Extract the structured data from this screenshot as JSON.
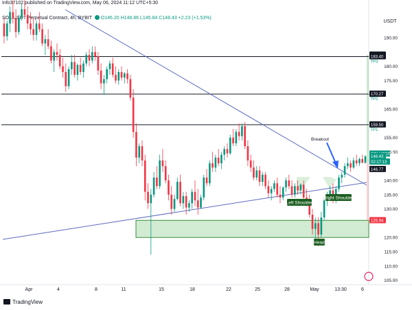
{
  "header": {
    "publisher": "Info37102 published on TradingView.com, May 06, 2024 11:12 UTC+5:30",
    "legend_symbol": "SOL/USDT Perpetual Contract, 4h, BYBIT",
    "legend_values": "O146.20 H148.86 L145.84 C148.43 +2.23 (+1.53%)"
  },
  "footer": {
    "brand": "TradingView"
  },
  "colors": {
    "up": "#089981",
    "down": "#f23645",
    "line": "#131722",
    "trend": "#5b6abf",
    "zone": "#4caf50"
  },
  "chart_data": {
    "type": "candlestick",
    "currency": "USDT",
    "price_scale": {
      "ticks": [
        190.0,
        180.0,
        175.0,
        165.0,
        155.0,
        150.0,
        140.0,
        135.0,
        130.0,
        120.0,
        115.0,
        110.0,
        105.0
      ]
    },
    "x_ticks": [
      "Apr",
      "4",
      "8",
      "11",
      "15",
      "18",
      "22",
      "25",
      "28",
      "May",
      "13:30",
      "6"
    ],
    "levels": [
      {
        "name": "TP3",
        "price": 183.4
      },
      {
        "name": "TP2",
        "price": 170.27
      },
      {
        "name": "TP1",
        "price": 159.5
      }
    ],
    "price_tags": [
      {
        "text": "183.97",
        "price": 183.97,
        "kind": "dark"
      },
      {
        "text": "183.40",
        "price": 183.4,
        "kind": "dark"
      },
      {
        "text": "170.27",
        "price": 170.27,
        "kind": "dark"
      },
      {
        "text": "159.50",
        "price": 159.5,
        "kind": "dark"
      },
      {
        "text": "SOLUSDT.P",
        "price": 149.3,
        "kind": "green"
      },
      {
        "text": "148.43",
        "price": 148.43,
        "kind": "green"
      },
      {
        "text": "02:17:13",
        "price": 146.5,
        "kind": "green"
      },
      {
        "text": "146.77",
        "price": 143.9,
        "kind": "dark"
      },
      {
        "text": "125.94",
        "price": 125.94,
        "kind": "red"
      }
    ],
    "support_zone": [
      120.0,
      126.0
    ],
    "target_box": [
      146.5,
      184.0
    ],
    "stop_box": [
      125.94,
      146.5
    ],
    "annotations": [
      "Breakout",
      "Left Shoulder",
      "Right Shoulder",
      "Head"
    ],
    "candles": [
      [
        195.0,
        197.0,
        188.0,
        190.5
      ],
      [
        190.5,
        196.0,
        189.0,
        195.0
      ],
      [
        195.0,
        201.0,
        192.0,
        199.0
      ],
      [
        199.0,
        203.0,
        195.0,
        197.0
      ],
      [
        197.0,
        200.0,
        190.0,
        192.0
      ],
      [
        192.0,
        198.0,
        191.0,
        197.0
      ],
      [
        197.0,
        202.0,
        196.0,
        200.0
      ],
      [
        200.0,
        204.0,
        197.0,
        198.0
      ],
      [
        198.0,
        201.0,
        193.0,
        195.0
      ],
      [
        195.0,
        199.0,
        191.0,
        193.0
      ],
      [
        193.0,
        197.0,
        189.0,
        191.0
      ],
      [
        191.0,
        196.0,
        189.0,
        195.0
      ],
      [
        195.0,
        199.0,
        192.0,
        193.0
      ],
      [
        193.0,
        195.0,
        187.0,
        188.0
      ],
      [
        188.0,
        191.0,
        184.0,
        189.5
      ],
      [
        189.5,
        193.0,
        186.0,
        187.0
      ],
      [
        187.0,
        189.0,
        181.0,
        182.0
      ],
      [
        182.0,
        186.0,
        178.0,
        185.0
      ],
      [
        185.0,
        188.0,
        182.0,
        184.0
      ],
      [
        184.0,
        186.0,
        179.0,
        180.0
      ],
      [
        180.0,
        183.0,
        176.0,
        178.0
      ],
      [
        178.0,
        181.0,
        171.0,
        173.0
      ],
      [
        173.0,
        180.0,
        172.0,
        179.0
      ],
      [
        179.0,
        184.0,
        177.0,
        181.5
      ],
      [
        181.5,
        184.0,
        176.0,
        177.0
      ],
      [
        177.0,
        181.0,
        175.0,
        180.5
      ],
      [
        180.5,
        183.0,
        177.0,
        178.0
      ],
      [
        178.0,
        182.0,
        176.0,
        181.0
      ],
      [
        181.0,
        185.0,
        180.0,
        184.0
      ],
      [
        184.0,
        186.0,
        180.0,
        182.0
      ],
      [
        182.0,
        187.0,
        181.0,
        185.0
      ],
      [
        185.0,
        187.0,
        182.0,
        183.5
      ],
      [
        183.5,
        185.0,
        177.0,
        178.5
      ],
      [
        178.5,
        181.0,
        172.0,
        174.0
      ],
      [
        174.0,
        177.0,
        170.0,
        175.5
      ],
      [
        175.5,
        180.0,
        174.0,
        179.0
      ],
      [
        179.0,
        182.0,
        177.0,
        181.0
      ],
      [
        181.0,
        183.0,
        176.0,
        177.0
      ],
      [
        177.0,
        180.0,
        174.0,
        175.0
      ],
      [
        175.0,
        179.0,
        173.5,
        178.0
      ],
      [
        178.0,
        180.0,
        175.0,
        176.0
      ],
      [
        176.0,
        178.0,
        174.0,
        177.5
      ],
      [
        177.5,
        179.0,
        174.0,
        175.5
      ],
      [
        175.5,
        177.0,
        168.0,
        169.0
      ],
      [
        169.0,
        172.0,
        155.0,
        157.0
      ],
      [
        157.0,
        160.0,
        145.0,
        148.0
      ],
      [
        148.0,
        153.0,
        146.0,
        152.0
      ],
      [
        152.0,
        154.0,
        145.0,
        147.0
      ],
      [
        147.0,
        149.0,
        133.0,
        136.0
      ],
      [
        136.0,
        139.0,
        130.0,
        132.0
      ],
      [
        132.0,
        137.0,
        114.0,
        135.0
      ],
      [
        135.0,
        143.0,
        134.0,
        141.0
      ],
      [
        141.0,
        145.0,
        137.0,
        138.0
      ],
      [
        138.0,
        149.0,
        137.0,
        147.0
      ],
      [
        147.0,
        151.0,
        143.0,
        145.0
      ],
      [
        145.0,
        147.0,
        139.0,
        140.0
      ],
      [
        140.0,
        142.0,
        133.0,
        135.0
      ],
      [
        135.0,
        138.0,
        128.0,
        130.0
      ],
      [
        130.0,
        135.0,
        129.0,
        133.5
      ],
      [
        133.5,
        141.0,
        133.0,
        139.5
      ],
      [
        139.5,
        142.0,
        131.0,
        132.0
      ],
      [
        132.0,
        136.0,
        130.0,
        134.5
      ],
      [
        134.5,
        136.0,
        128.0,
        130.5
      ],
      [
        130.5,
        133.0,
        129.0,
        132.0
      ],
      [
        132.0,
        137.0,
        130.0,
        136.0
      ],
      [
        136.0,
        140.0,
        131.0,
        133.0
      ],
      [
        133.0,
        137.0,
        128.0,
        130.5
      ],
      [
        130.5,
        135.0,
        130.0,
        134.0
      ],
      [
        134.0,
        142.0,
        133.0,
        141.0
      ],
      [
        141.0,
        144.0,
        138.0,
        139.0
      ],
      [
        139.0,
        147.0,
        138.0,
        146.0
      ],
      [
        146.0,
        150.0,
        143.0,
        144.5
      ],
      [
        144.5,
        149.0,
        143.0,
        148.0
      ],
      [
        148.0,
        151.0,
        145.0,
        146.0
      ],
      [
        146.0,
        150.0,
        144.0,
        149.0
      ],
      [
        149.0,
        152.0,
        147.0,
        151.0
      ],
      [
        151.0,
        153.0,
        148.0,
        149.5
      ],
      [
        149.5,
        156.0,
        149.0,
        155.0
      ],
      [
        155.0,
        158.0,
        152.0,
        153.0
      ],
      [
        153.0,
        158.0,
        152.0,
        157.0
      ],
      [
        157.0,
        160.0,
        154.0,
        155.5
      ],
      [
        155.5,
        160.0,
        154.0,
        159.0
      ],
      [
        159.0,
        160.5,
        151.0,
        152.0
      ],
      [
        152.0,
        154.0,
        145.0,
        147.0
      ],
      [
        147.0,
        149.0,
        143.0,
        144.5
      ],
      [
        144.5,
        147.0,
        140.0,
        141.0
      ],
      [
        141.0,
        145.0,
        140.0,
        143.5
      ],
      [
        143.5,
        145.0,
        138.0,
        139.5
      ],
      [
        139.5,
        143.0,
        138.0,
        142.0
      ],
      [
        142.0,
        143.0,
        137.0,
        138.0
      ],
      [
        138.0,
        140.0,
        134.0,
        135.5
      ],
      [
        135.5,
        138.0,
        133.0,
        137.0
      ],
      [
        137.0,
        140.0,
        136.0,
        139.0
      ],
      [
        139.0,
        141.0,
        134.0,
        135.0
      ],
      [
        135.0,
        138.0,
        132.0,
        134.0
      ],
      [
        134.0,
        138.0,
        133.0,
        137.5
      ],
      [
        137.5,
        141.0,
        136.0,
        140.0
      ],
      [
        140.0,
        142.0,
        137.0,
        138.0
      ],
      [
        138.0,
        140.0,
        134.0,
        135.0
      ],
      [
        135.0,
        139.0,
        134.0,
        138.0
      ],
      [
        138.0,
        140.0,
        135.0,
        136.5
      ],
      [
        136.5,
        139.0,
        135.0,
        138.5
      ],
      [
        138.5,
        140.0,
        133.0,
        134.0
      ],
      [
        134.0,
        137.0,
        131.0,
        133.0
      ],
      [
        133.0,
        135.0,
        127.0,
        128.0
      ],
      [
        128.0,
        130.0,
        121.0,
        123.0
      ],
      [
        123.0,
        127.0,
        118.0,
        125.0
      ],
      [
        125.0,
        127.0,
        117.0,
        121.0
      ],
      [
        121.0,
        129.0,
        120.0,
        127.0
      ],
      [
        127.0,
        134.0,
        126.0,
        133.0
      ],
      [
        133.0,
        136.0,
        131.0,
        134.0
      ],
      [
        134.0,
        138.0,
        133.0,
        136.5
      ],
      [
        136.5,
        139.0,
        132.0,
        133.0
      ],
      [
        133.0,
        138.0,
        132.0,
        137.0
      ],
      [
        137.0,
        142.0,
        136.0,
        141.0
      ],
      [
        141.0,
        143.0,
        139.0,
        142.0
      ],
      [
        142.0,
        146.0,
        141.0,
        145.0
      ],
      [
        145.0,
        148.0,
        144.0,
        146.0
      ],
      [
        146.0,
        147.0,
        143.0,
        144.5
      ],
      [
        144.5,
        148.0,
        144.0,
        147.0
      ],
      [
        147.0,
        149.0,
        145.0,
        146.0
      ],
      [
        146.0,
        148.0,
        145.0,
        147.5
      ],
      [
        147.5,
        149.0,
        146.0,
        146.2
      ],
      [
        146.2,
        148.86,
        145.84,
        148.43
      ]
    ]
  }
}
